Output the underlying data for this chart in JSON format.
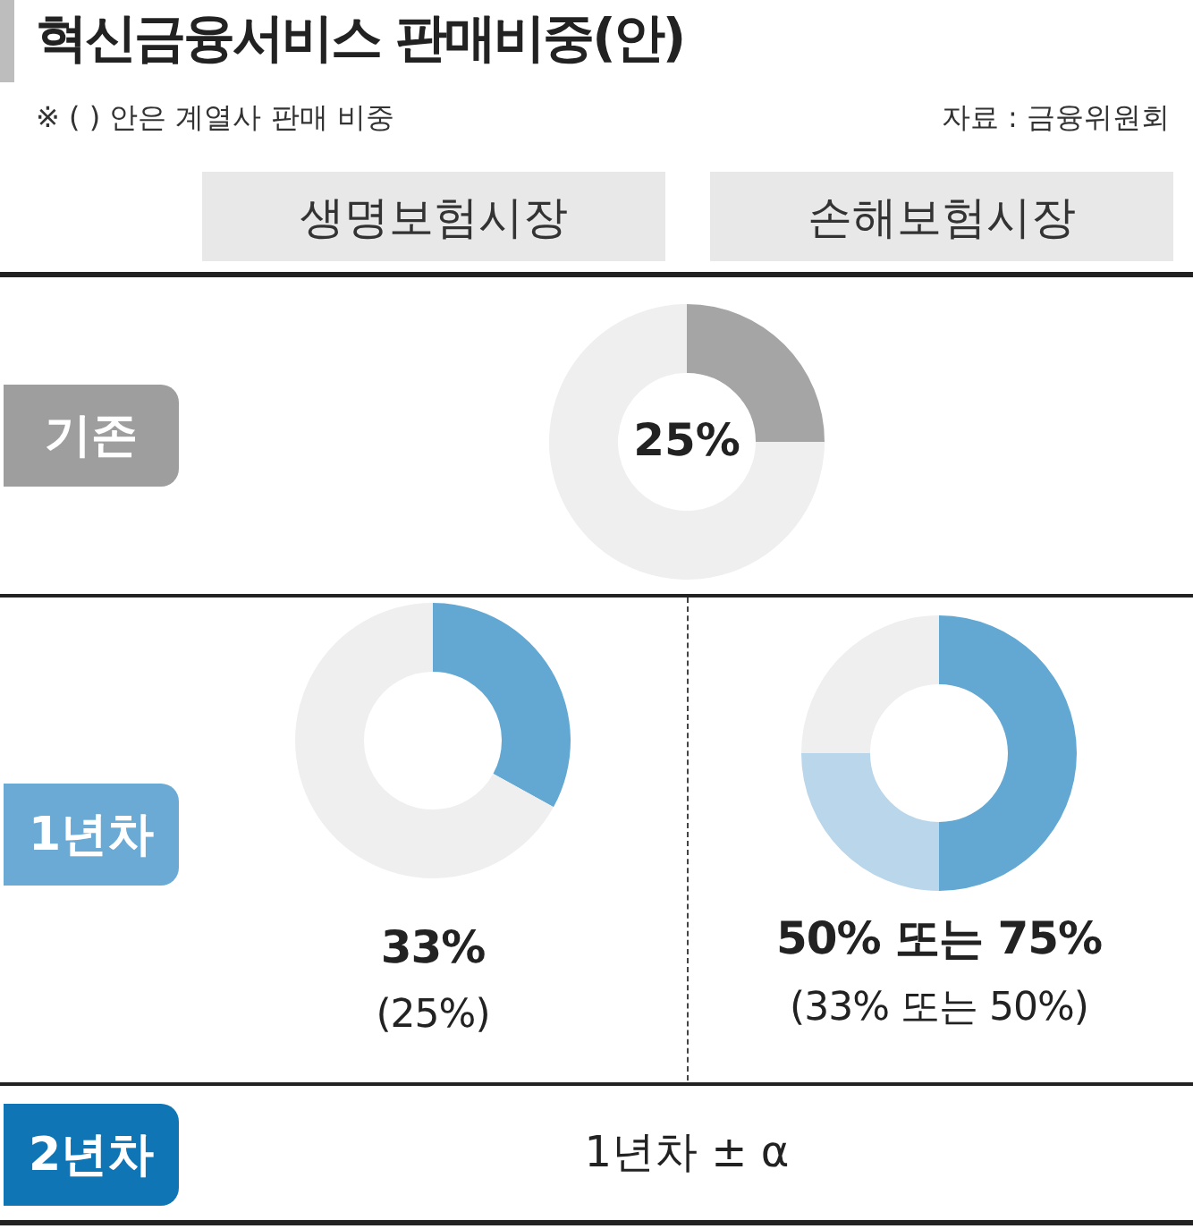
{
  "chart_data": [
    {
      "type": "other",
      "title": "혁신금융서비스 판매비중(안)",
      "subtitle": "※ (   ) 안은 계열사 판매 비중",
      "annotations": [
        "자료 : 금융위원회",
        "생명보험시장",
        "손해보험시장",
        "기존",
        "1년차",
        "2년차",
        "1년차 ± α"
      ]
    },
    {
      "type": "donut",
      "categories": [
        null,
        null
      ],
      "values": [
        25,
        75
      ],
      "colors": [
        "#a5a5a5",
        "#efefef"
      ],
      "value_labels": [
        "25%",
        null
      ]
    },
    {
      "type": "donut",
      "categories": [
        null,
        null
      ],
      "values": [
        33,
        67
      ],
      "colors": [
        "#62a8d3",
        "#efefef"
      ],
      "annotations": [
        "33%",
        "(25%)"
      ]
    },
    {
      "type": "donut",
      "categories": [
        null,
        null,
        null
      ],
      "values": [
        50,
        25,
        25
      ],
      "colors": [
        "#62a8d3",
        "#b9d6ea",
        "#efefef"
      ],
      "annotations": [
        "50% 또는 75%",
        "(33% 또는 50%)"
      ]
    }
  ]
}
